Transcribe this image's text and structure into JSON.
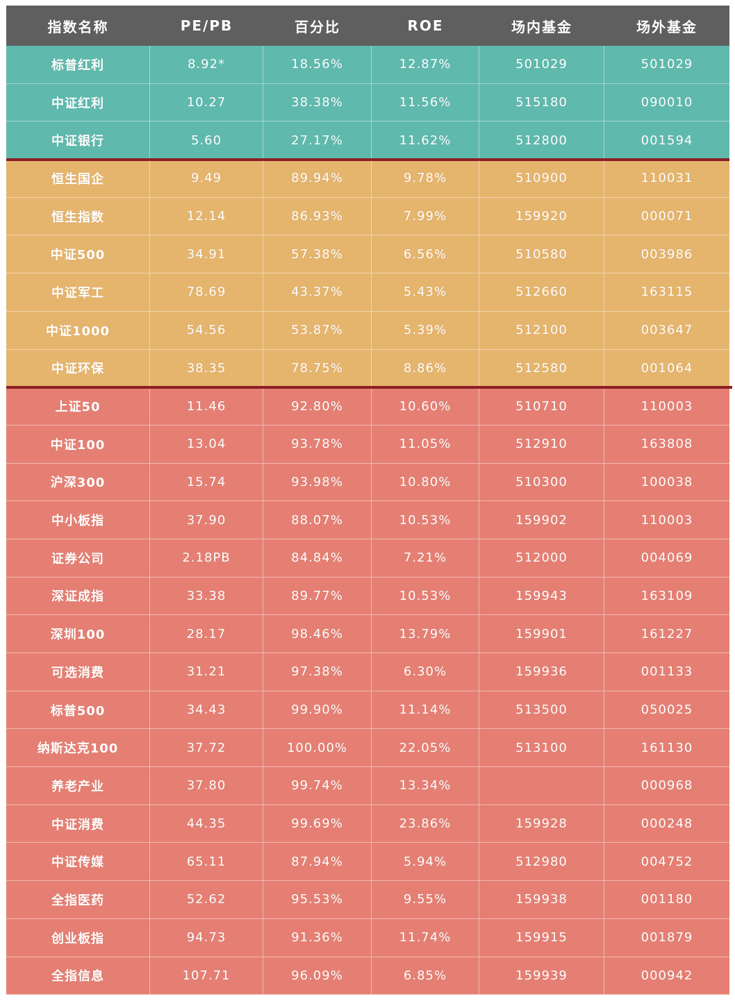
{
  "colors": {
    "header": "#5f5f5f",
    "green": "#5fb9ad",
    "yellow": "#e5b46d",
    "red": "#e57f73",
    "divider": "#8b1f24"
  },
  "header": [
    "指数名称",
    "PE/PB",
    "百分比",
    "ROE",
    "场内基金",
    "场外基金"
  ],
  "groups": [
    {
      "color": "green",
      "rows": [
        [
          "标普红利",
          "8.92*",
          "18.56%",
          "12.87%",
          "501029",
          "501029"
        ],
        [
          "中证红利",
          "10.27",
          "38.38%",
          "11.56%",
          "515180",
          "090010"
        ],
        [
          "中证银行",
          "5.60",
          "27.17%",
          "11.62%",
          "512800",
          "001594"
        ]
      ]
    },
    {
      "color": "yellow",
      "rows": [
        [
          "恒生国企",
          "9.49",
          "89.94%",
          "9.78%",
          "510900",
          "110031"
        ],
        [
          "恒生指数",
          "12.14",
          "86.93%",
          "7.99%",
          "159920",
          "000071"
        ],
        [
          "中证500",
          "34.91",
          "57.38%",
          "6.56%",
          "510580",
          "003986"
        ],
        [
          "中证军工",
          "78.69",
          "43.37%",
          "5.43%",
          "512660",
          "163115"
        ],
        [
          "中证1000",
          "54.56",
          "53.87%",
          "5.39%",
          "512100",
          "003647"
        ],
        [
          "中证环保",
          "38.35",
          "78.75%",
          "8.86%",
          "512580",
          "001064"
        ]
      ]
    },
    {
      "color": "red",
      "rows": [
        [
          "上证50",
          "11.46",
          "92.80%",
          "10.60%",
          "510710",
          "110003"
        ],
        [
          "中证100",
          "13.04",
          "93.78%",
          "11.05%",
          "512910",
          "163808"
        ],
        [
          "沪深300",
          "15.74",
          "93.98%",
          "10.80%",
          "510300",
          "100038"
        ],
        [
          "中小板指",
          "37.90",
          "88.07%",
          "10.53%",
          "159902",
          "110003"
        ],
        [
          "证券公司",
          "2.18PB",
          "84.84%",
          "7.21%",
          "512000",
          "004069"
        ],
        [
          "深证成指",
          "33.38",
          "89.77%",
          "10.53%",
          "159943",
          "163109"
        ],
        [
          "深圳100",
          "28.17",
          "98.46%",
          "13.79%",
          "159901",
          "161227"
        ],
        [
          "可选消费",
          "31.21",
          "97.38%",
          "6.30%",
          "159936",
          "001133"
        ],
        [
          "标普500",
          "34.43",
          "99.90%",
          "11.14%",
          "513500",
          "050025"
        ],
        [
          "纳斯达克100",
          "37.72",
          "100.00%",
          "22.05%",
          "513100",
          "161130"
        ],
        [
          "养老产业",
          "37.80",
          "99.74%",
          "13.34%",
          "",
          "000968"
        ],
        [
          "中证消费",
          "44.35",
          "99.69%",
          "23.86%",
          "159928",
          "000248"
        ],
        [
          "中证传媒",
          "65.11",
          "87.94%",
          "5.94%",
          "512980",
          "004752"
        ],
        [
          "全指医药",
          "52.62",
          "95.53%",
          "9.55%",
          "159938",
          "001180"
        ],
        [
          "创业板指",
          "94.73",
          "91.36%",
          "11.74%",
          "159915",
          "001879"
        ],
        [
          "全指信息",
          "107.71",
          "96.09%",
          "6.85%",
          "159939",
          "000942"
        ]
      ]
    }
  ]
}
